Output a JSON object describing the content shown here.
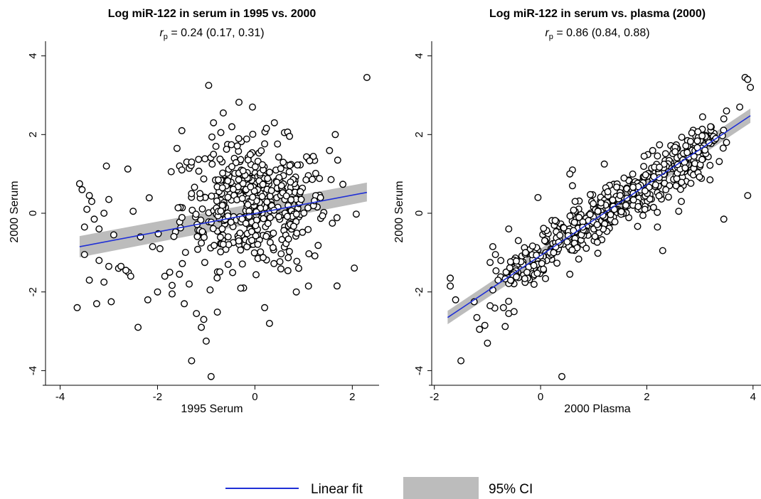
{
  "chart_data": [
    {
      "type": "scatter",
      "title": "Log miR-122 in serum in 1995 vs. 2000",
      "subtitle": {
        "symbol": "r",
        "subscript": "p",
        "text": " = 0.24 (0.17, 0.31)"
      },
      "xlabel": "1995 Serum",
      "ylabel": "2000 Serum",
      "xlim": [
        -4.3,
        2.55
      ],
      "ylim": [
        -4.3,
        4.3
      ],
      "xticks": [
        -4,
        -2,
        0,
        2
      ],
      "yticks": [
        -4,
        -2,
        0,
        2,
        4
      ],
      "fit": {
        "x": [
          -3.6,
          2.3
        ],
        "y": [
          -0.85,
          0.53
        ],
        "ci_lo": [
          -1.12,
          0.3
        ],
        "ci_hi": [
          -0.58,
          0.78
        ]
      },
      "points": {
        "x": [
          -3.6,
          -3.55,
          -3.5,
          -3.45,
          -3.4,
          -3.35,
          -3.3,
          -3.2,
          -3.1,
          -3.0,
          -2.9,
          -3.5,
          -3.2,
          -3.0,
          -2.8,
          -3.4,
          -3.1,
          -2.95,
          -3.65,
          -3.25,
          -3.05,
          -2.6,
          -2.55,
          -2.4,
          -2.2,
          -2.0,
          -1.85,
          -1.75,
          -1.6,
          -1.5,
          -1.4,
          -1.3,
          -2.5,
          -2.35,
          -2.1,
          -1.95,
          -1.7,
          -1.55,
          -2.75,
          -2.65,
          -1.45,
          -1.35,
          -1.2,
          -1.1,
          -1.0,
          -0.95,
          -0.9,
          -0.92,
          -0.85,
          -0.8,
          -0.7,
          -1.5,
          -1.3,
          -1.05,
          2.3,
          1.65,
          1.7,
          1.05,
          0.95,
          1.1,
          0.9,
          0.85,
          -0.55,
          0.2,
          0.3,
          -0.85,
          -0.65,
          -0.05,
          0.4
        ],
        "y": [
          0.75,
          0.6,
          -0.35,
          0.1,
          0.45,
          0.3,
          -0.15,
          -0.4,
          0.0,
          0.35,
          -0.55,
          -1.05,
          -1.2,
          -1.35,
          -1.4,
          -1.7,
          -1.75,
          -2.25,
          -2.4,
          -2.3,
          1.2,
          -1.5,
          -1.6,
          -2.9,
          -2.2,
          -2.0,
          -1.6,
          -1.5,
          1.65,
          2.1,
          1.3,
          1.3,
          0.05,
          -0.6,
          -0.85,
          -0.9,
          -2.05,
          -1.55,
          -1.35,
          -1.45,
          -2.3,
          -1.8,
          -2.55,
          -2.9,
          -3.25,
          3.25,
          -4.15,
          -1.95,
          1.5,
          1.7,
          2.05,
          1.1,
          -3.75,
          -2.7,
          3.45,
          2.0,
          1.35,
          0.85,
          0.35,
          -1.85,
          -1.4,
          -2.0,
          -1.3,
          -2.4,
          -2.8,
          2.3,
          2.55,
          2.7,
          2.3
        ],
        "cluster": {
          "center": [
            0.0,
            0.2
          ],
          "spread": [
            0.75,
            0.8
          ],
          "count": 460
        }
      }
    },
    {
      "type": "scatter",
      "title": "Log miR-122 in serum vs. plasma (2000)",
      "subtitle": {
        "symbol": "r",
        "subscript": "p",
        "text": " = 0.86 (0.84, 0.88)"
      },
      "xlabel": "2000 Plasma",
      "ylabel": "2000 Serum",
      "xlim": [
        -2.05,
        4.15
      ],
      "ylim": [
        -4.3,
        4.3
      ],
      "xticks": [
        -2,
        0,
        2,
        4
      ],
      "yticks": [
        -4,
        -2,
        0,
        2,
        4
      ],
      "fit": {
        "x": [
          -1.75,
          3.95
        ],
        "y": [
          -2.65,
          2.48
        ],
        "ci_lo": [
          -2.82,
          2.3
        ],
        "ci_hi": [
          -2.48,
          2.66
        ]
      },
      "points": {
        "x": [
          -1.7,
          -1.7,
          -1.6,
          -1.5,
          -1.25,
          -1.2,
          -1.15,
          -1.0,
          -1.05,
          -0.95,
          -0.9,
          -0.95,
          -0.85,
          -0.8,
          -0.7,
          -0.6,
          -0.5,
          -0.6,
          -0.9,
          0.4,
          0.6,
          0.55,
          0.6,
          0.65,
          -0.05,
          3.85,
          3.9,
          3.95,
          3.75,
          3.5,
          3.45,
          3.05,
          3.2,
          3.9,
          3.45,
          2.65,
          2.6,
          2.3,
          1.95,
          2.55,
          1.2,
          0.55,
          2.2,
          3.3,
          3.5
        ],
        "y": [
          -1.65,
          -1.85,
          -2.2,
          -3.75,
          -2.25,
          -2.65,
          -2.95,
          -3.3,
          -2.85,
          -2.35,
          -1.95,
          -1.25,
          -1.05,
          -1.7,
          -2.4,
          -2.55,
          -2.5,
          -0.4,
          -0.85,
          -4.15,
          1.1,
          1.0,
          0.7,
          0.3,
          0.4,
          3.45,
          3.4,
          3.2,
          2.7,
          2.6,
          2.4,
          2.45,
          2.2,
          0.45,
          -0.15,
          0.3,
          0.05,
          -0.95,
          1.45,
          0.7,
          1.25,
          -1.55,
          -0.35,
          1.9,
          1.8
        ],
        "cluster": {
          "along_fit": true,
          "x_range": [
            -0.6,
            3.2
          ],
          "spread_y": 0.32,
          "count": 560
        }
      }
    }
  ],
  "legend": {
    "line_label": "Linear fit",
    "band_label": "95% CI",
    "line_color": "#1f2fd6",
    "band_color": "#bcbcbc"
  }
}
